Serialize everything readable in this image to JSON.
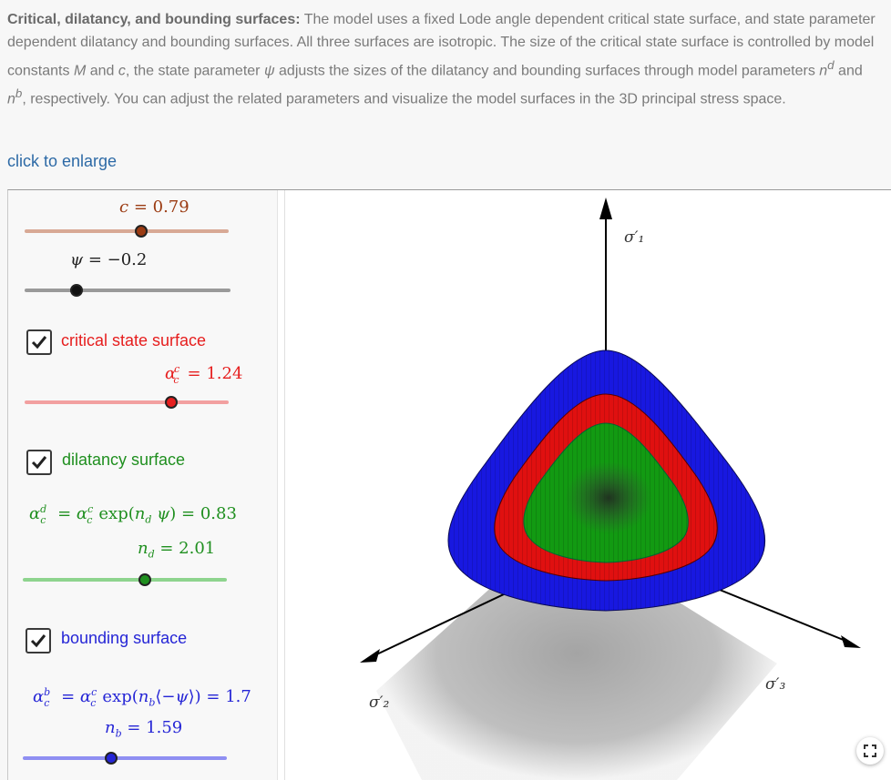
{
  "description": {
    "heading": "Critical, dilatancy, and bounding surfaces:",
    "t1": " The model uses a fixed Lode angle dependent critical state surface, and state parameter dependent dilatancy and bounding surfaces. All three surfaces are isotropic. The size of the critical state surface is controlled by model constants ",
    "M": "M",
    "t2": " and ",
    "c": "c",
    "t3": ", the state parameter ",
    "psi": "ψ",
    "t4": " adjusts the sizes of the dilatancy and bounding surfaces through model parameters ",
    "n": "n",
    "d": "d",
    "t5": " and ",
    "n2": "n",
    "b": "b",
    "t6": ", respectively. You can adjust the related parameters and visualize the model surfaces in the 3D principal stress space."
  },
  "enlarge_label": "click to enlarge",
  "colors": {
    "c_param": "#9b3b12",
    "critical": "#e61e1e",
    "dilatancy": "#1f8f1f",
    "bounding": "#2525d6",
    "psi": "#222222"
  },
  "params": {
    "c": {
      "label": "c = 0.79",
      "value": 0.79,
      "fraction": 0.58
    },
    "psi": {
      "label": "ψ = −0.2",
      "value": -0.2,
      "fraction": 0.25
    },
    "alpha_c": {
      "label": "α = 1.24",
      "sup": "c",
      "sub": "c",
      "value": 1.24,
      "fraction": 0.72
    },
    "alpha_d": {
      "label": "= α exp(n ψ) = 0.83",
      "value": 0.83
    },
    "n_d": {
      "label": "n = 2.01",
      "value": 2.01,
      "fraction": 0.6
    },
    "alpha_b": {
      "label": "= α exp(n (−ψ)) = 1.7",
      "value": 1.7
    },
    "n_b": {
      "label": "n = 1.59",
      "value": 1.59,
      "fraction": 0.44
    }
  },
  "checkboxes": {
    "critical": {
      "label": "critical state surface",
      "checked": true
    },
    "dilatancy": {
      "label": "dilatancy surface",
      "checked": true
    },
    "bounding": {
      "label": "bounding surface",
      "checked": true
    }
  },
  "axes": {
    "s1": "σ′₁",
    "s2": "σ′₂",
    "s3": "σ′₃"
  },
  "fullscreen_icon": "fullscreen-icon"
}
